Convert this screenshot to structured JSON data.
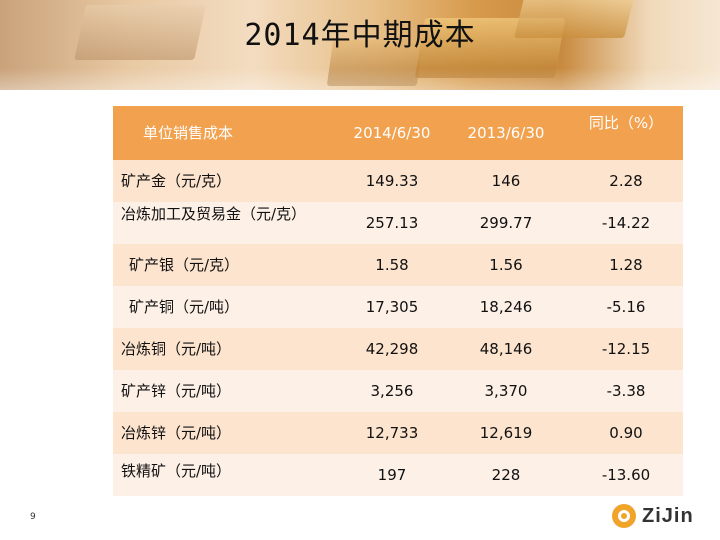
{
  "title": "2014年中期成本",
  "table": {
    "headers": [
      "单位销售成本",
      "2014/6/30",
      "2013/6/30",
      "同比（%）"
    ],
    "rows": [
      {
        "name": "矿产金（元/克）",
        "v2014": "149.33",
        "v2013": "146",
        "yoy": "2.28"
      },
      {
        "name": "冶炼加工及贸易金（元/克）",
        "v2014": "257.13",
        "v2013": "299.77",
        "yoy": "-14.22"
      },
      {
        "name": "矿产银（元/克）",
        "v2014": "1.58",
        "v2013": "1.56",
        "yoy": "1.28"
      },
      {
        "name": "矿产铜（元/吨）",
        "v2014": "17,305",
        "v2013": "18,246",
        "yoy": "-5.16"
      },
      {
        "name": "冶炼铜（元/吨）",
        "v2014": "42,298",
        "v2013": "48,146",
        "yoy": "-12.15"
      },
      {
        "name": "矿产锌（元/吨）",
        "v2014": "3,256",
        "v2013": "3,370",
        "yoy": "-3.38"
      },
      {
        "name": "冶炼锌（元/吨）",
        "v2014": "12,733",
        "v2013": "12,619",
        "yoy": "0.90"
      },
      {
        "name": "铁精矿（元/吨）",
        "v2014": "197",
        "v2013": "228",
        "yoy": "-13.60"
      }
    ]
  },
  "page_number": "9",
  "logo_text": "ZiJin",
  "colors": {
    "header": "#f2a24f",
    "row_alt": "#fde4cf",
    "row_light": "#fdf0e6",
    "logo": "#f0a42a"
  }
}
